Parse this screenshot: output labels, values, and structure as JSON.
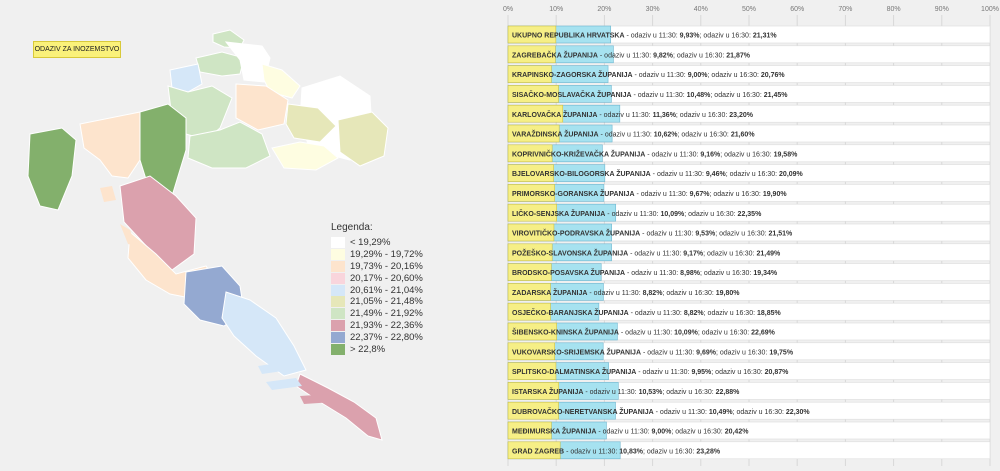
{
  "map": {
    "abroad_button": "ODAZIV ZA INOZEMSTVO",
    "legend": {
      "title": "Legenda:",
      "items": [
        {
          "label": "< 19,29%",
          "color": "#ffffff"
        },
        {
          "label": "19,29% - 19,72%",
          "color": "#fefde1"
        },
        {
          "label": "19,73% - 20,16%",
          "color": "#fde4cd"
        },
        {
          "label": "20,17% - 20,60%",
          "color": "#f9d5dc"
        },
        {
          "label": "20,61% - 21,04%",
          "color": "#d5e7f8"
        },
        {
          "label": "21,05% - 21,48%",
          "color": "#e6e7b9"
        },
        {
          "label": "21,49% - 21,92%",
          "color": "#cfe5c4"
        },
        {
          "label": "21,93% - 22,36%",
          "color": "#dba1ad"
        },
        {
          "label": "22,37% - 22,80%",
          "color": "#94a9d1"
        },
        {
          "label": "> 22,8%",
          "color": "#83b06c"
        }
      ]
    }
  },
  "chart_data": {
    "type": "bar",
    "xlim": [
      0,
      100
    ],
    "ticks": [
      "0%",
      "10%",
      "20%",
      "30%",
      "40%",
      "50%",
      "60%",
      "70%",
      "80%",
      "90%",
      "100%"
    ],
    "series": [
      {
        "name": "odaziv u 11:30",
        "color": "#f6ef86"
      },
      {
        "name": "odaziv u 16:30",
        "color": "#a6e2f0"
      }
    ],
    "rows": [
      {
        "name": "UKUPNO REPUBLIKA HRVATSKA",
        "v1130": "9,93%",
        "v1630": "21,31%",
        "a": 9.93,
        "b": 21.31
      },
      {
        "name": "ZAGREBAČKA ŽUPANIJA",
        "v1130": "9,82%",
        "v1630": "21,87%",
        "a": 9.82,
        "b": 21.87
      },
      {
        "name": "KRAPINSKO-ZAGORSKA ŽUPANIJA",
        "v1130": "9,00%",
        "v1630": "20,76%",
        "a": 9.0,
        "b": 20.76
      },
      {
        "name": "SISAČKO-MOSLAVAČKA ŽUPANIJA",
        "v1130": "10,48%",
        "v1630": "21,45%",
        "a": 10.48,
        "b": 21.45
      },
      {
        "name": "KARLOVAČKA ŽUPANIJA",
        "v1130": "11,36%",
        "v1630": "23,20%",
        "a": 11.36,
        "b": 23.2
      },
      {
        "name": "VARAŽDINSKA ŽUPANIJA",
        "v1130": "10,62%",
        "v1630": "21,60%",
        "a": 10.62,
        "b": 21.6
      },
      {
        "name": "KOPRIVNIČKO-KRIŽEVAČKA ŽUPANIJA",
        "v1130": "9,16%",
        "v1630": "19,58%",
        "a": 9.16,
        "b": 19.58
      },
      {
        "name": "BJELOVARSKO-BILOGORSKA ŽUPANIJA",
        "v1130": "9,46%",
        "v1630": "20,09%",
        "a": 9.46,
        "b": 20.09
      },
      {
        "name": "PRIMORSKO-GORANSKA ŽUPANIJA",
        "v1130": "9,67%",
        "v1630": "19,90%",
        "a": 9.67,
        "b": 19.9
      },
      {
        "name": "LIČKO-SENJSKA ŽUPANIJA",
        "v1130": "10,09%",
        "v1630": "22,35%",
        "a": 10.09,
        "b": 22.35
      },
      {
        "name": "VIROVITIČKO-PODRAVSKA ŽUPANIJA",
        "v1130": "9,53%",
        "v1630": "21,51%",
        "a": 9.53,
        "b": 21.51
      },
      {
        "name": "POŽEŠKO-SLAVONSKA ŽUPANIJA",
        "v1130": "9,17%",
        "v1630": "21,49%",
        "a": 9.17,
        "b": 21.49
      },
      {
        "name": "BRODSKO-POSAVSKA ŽUPANIJA",
        "v1130": "8,98%",
        "v1630": "19,34%",
        "a": 8.98,
        "b": 19.34
      },
      {
        "name": "ZADARSKA ŽUPANIJA",
        "v1130": "8,82%",
        "v1630": "19,80%",
        "a": 8.82,
        "b": 19.8
      },
      {
        "name": "OSJEČKO-BARANJSKA ŽUPANIJA",
        "v1130": "8,82%",
        "v1630": "18,85%",
        "a": 8.82,
        "b": 18.85
      },
      {
        "name": "ŠIBENSKO-KNINSKA ŽUPANIJA",
        "v1130": "10,09%",
        "v1630": "22,69%",
        "a": 10.09,
        "b": 22.69
      },
      {
        "name": "VUKOVARSKO-SRIJEMSKA ŽUPANIJA",
        "v1130": "9,69%",
        "v1630": "19,75%",
        "a": 9.69,
        "b": 19.75
      },
      {
        "name": "SPLITSKO-DALMATINSKA ŽUPANIJA",
        "v1130": "9,95%",
        "v1630": "20,87%",
        "a": 9.95,
        "b": 20.87
      },
      {
        "name": "ISTARSKA ŽUPANIJA",
        "v1130": "10,53%",
        "v1630": "22,88%",
        "a": 10.53,
        "b": 22.88
      },
      {
        "name": "DUBROVAČKO-NERETVANSKA ŽUPANIJA",
        "v1130": "10,49%",
        "v1630": "22,30%",
        "a": 10.49,
        "b": 22.3
      },
      {
        "name": "MEĐIMURSKA ŽUPANIJA",
        "v1130": "9,00%",
        "v1630": "20,42%",
        "a": 9.0,
        "b": 20.42
      },
      {
        "name": "GRAD ZAGREB",
        "v1130": "10,83%",
        "v1630": "23,28%",
        "a": 10.83,
        "b": 23.28
      }
    ],
    "label_text": {
      "sep": " - ",
      "t1": "odaziv u 11:30: ",
      "t2": "; odaziv u 16:30: "
    }
  }
}
